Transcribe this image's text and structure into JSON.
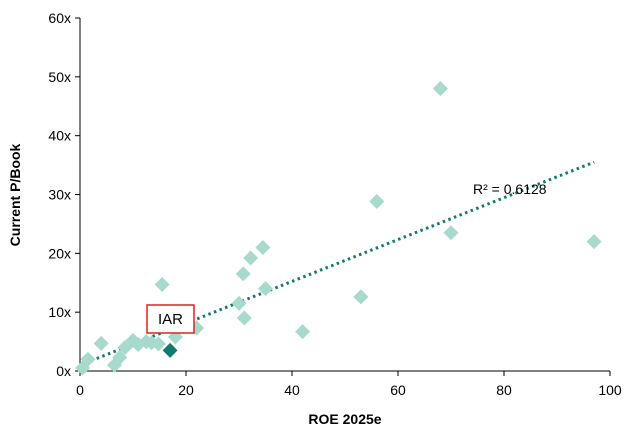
{
  "chart_data": {
    "type": "scatter",
    "title": "",
    "xlabel": "ROE 2025e",
    "ylabel": "Current P/Book",
    "xlim": [
      0,
      100
    ],
    "ylim": [
      0,
      60
    ],
    "x_ticks": [
      "0",
      "20",
      "40",
      "60",
      "80",
      "100"
    ],
    "y_ticks": [
      "0x",
      "10x",
      "20x",
      "30x",
      "40x",
      "50x",
      "60x"
    ],
    "grid": false,
    "legend": "none",
    "colors": {
      "points": "#a7d9cc",
      "highlight": "#137a72",
      "trendline": "#137a72",
      "callout_border": "#e0201b"
    },
    "points": [
      {
        "x": 0.5,
        "y": 0.5
      },
      {
        "x": 1.5,
        "y": 2.0
      },
      {
        "x": 4.0,
        "y": 4.7
      },
      {
        "x": 6.5,
        "y": 1.0
      },
      {
        "x": 7.5,
        "y": 2.3
      },
      {
        "x": 8.5,
        "y": 4.0
      },
      {
        "x": 10.0,
        "y": 5.2
      },
      {
        "x": 11.0,
        "y": 4.5
      },
      {
        "x": 12.5,
        "y": 5.0
      },
      {
        "x": 13.5,
        "y": 4.8
      },
      {
        "x": 14.8,
        "y": 4.6
      },
      {
        "x": 15.5,
        "y": 14.7
      },
      {
        "x": 18.0,
        "y": 5.8
      },
      {
        "x": 20.0,
        "y": 7.8
      },
      {
        "x": 22.0,
        "y": 7.3
      },
      {
        "x": 30.0,
        "y": 11.5
      },
      {
        "x": 30.8,
        "y": 16.5
      },
      {
        "x": 31.0,
        "y": 9.0
      },
      {
        "x": 32.2,
        "y": 19.2
      },
      {
        "x": 34.5,
        "y": 21.0
      },
      {
        "x": 35.0,
        "y": 14.0
      },
      {
        "x": 42.0,
        "y": 6.7
      },
      {
        "x": 53.0,
        "y": 12.6
      },
      {
        "x": 56.0,
        "y": 28.8
      },
      {
        "x": 68.0,
        "y": 48.0
      },
      {
        "x": 70.0,
        "y": 23.5
      },
      {
        "x": 97.0,
        "y": 22.0
      }
    ],
    "highlight": {
      "label": "IAR",
      "x": 17.0,
      "y": 3.5
    },
    "trendline": {
      "x_start": 0,
      "y_start": 1.0,
      "x_end": 97,
      "y_end": 35.5,
      "style": "dotted"
    },
    "annotation": "R² = 0.6128"
  }
}
